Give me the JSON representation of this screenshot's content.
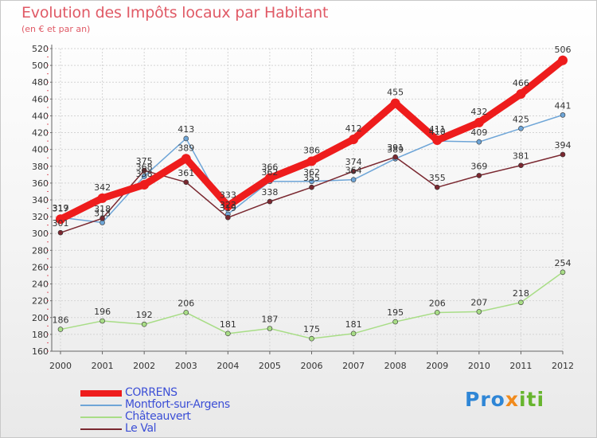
{
  "title": "Evolution des Impôts locaux par Habitant",
  "subtitle": "(en € et par an)",
  "brand": {
    "p1": "Pro",
    "p2": "x",
    "p3": "iti"
  },
  "chart_data": {
    "type": "line",
    "title": "Evolution des Impôts locaux par Habitant",
    "subtitle": "(en € et par an)",
    "xlabel": "",
    "ylabel": "",
    "x": [
      "2000",
      "2001",
      "2002",
      "2003",
      "2004",
      "2005",
      "2006",
      "2007",
      "2008",
      "2009",
      "2010",
      "2011",
      "2012"
    ],
    "ylim": [
      160,
      520
    ],
    "yticks": [
      160,
      180,
      200,
      220,
      240,
      260,
      280,
      300,
      320,
      340,
      360,
      380,
      400,
      420,
      440,
      460,
      480,
      500,
      520
    ],
    "grid": true,
    "legend_position": "bottom-left",
    "series": [
      {
        "name": "CORRENS",
        "color": "#ee1c1c",
        "thick": true,
        "values": [
          317,
          342,
          358,
          389,
          333,
          366,
          386,
          412,
          455,
          411,
          432,
          466,
          506
        ]
      },
      {
        "name": "Montfort-sur-Argens",
        "color": "#6ea5d7",
        "thick": false,
        "values": [
          319,
          313,
          368,
          413,
          323,
          362,
          362,
          364,
          389,
          410,
          409,
          425,
          441
        ]
      },
      {
        "name": "Châteauvert",
        "color": "#a8dd86",
        "thick": false,
        "values": [
          186,
          196,
          192,
          206,
          181,
          187,
          175,
          181,
          195,
          206,
          207,
          218,
          254
        ]
      },
      {
        "name": "Le Val",
        "color": "#7a2830",
        "thick": false,
        "values": [
          301,
          318,
          375,
          361,
          319,
          338,
          355,
          374,
          391,
          355,
          369,
          381,
          394
        ]
      }
    ]
  }
}
